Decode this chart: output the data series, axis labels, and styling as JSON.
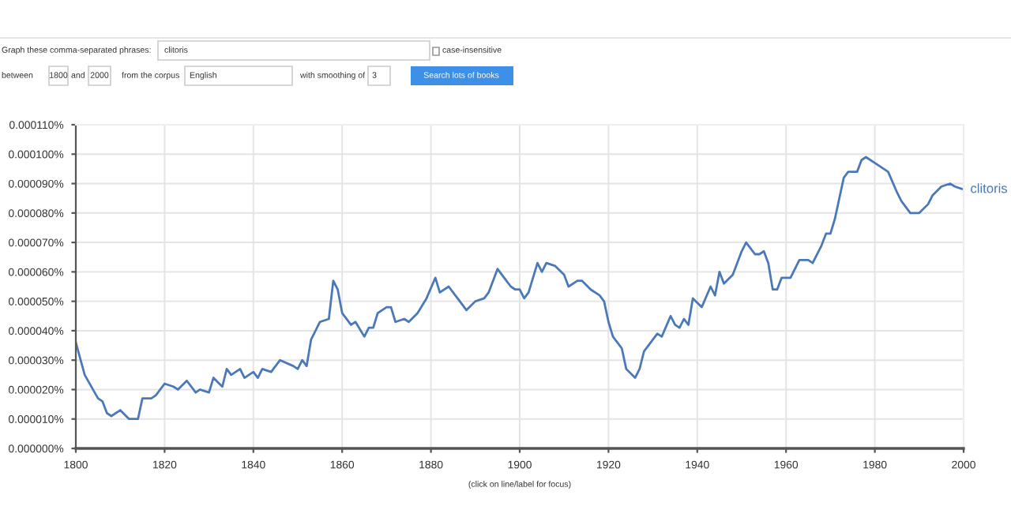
{
  "chart_data": {
    "type": "line",
    "x": [
      1800,
      1802,
      1805,
      1806,
      1807,
      1808,
      1810,
      1812,
      1814,
      1815,
      1817,
      1818,
      1820,
      1822,
      1823,
      1825,
      1827,
      1828,
      1830,
      1831,
      1833,
      1834,
      1835,
      1837,
      1838,
      1840,
      1841,
      1842,
      1844,
      1846,
      1849,
      1850,
      1851,
      1852,
      1853,
      1855,
      1857,
      1858,
      1859,
      1860,
      1862,
      1863,
      1865,
      1866,
      1867,
      1868,
      1870,
      1871,
      1872,
      1874,
      1875,
      1877,
      1879,
      1881,
      1882,
      1884,
      1886,
      1888,
      1890,
      1892,
      1893,
      1895,
      1897,
      1898,
      1899,
      1900,
      1901,
      1902,
      1904,
      1905,
      1906,
      1908,
      1910,
      1911,
      1913,
      1914,
      1916,
      1918,
      1919,
      1920,
      1921,
      1923,
      1924,
      1926,
      1927,
      1928,
      1929,
      1931,
      1932,
      1934,
      1935,
      1936,
      1937,
      1938,
      1939,
      1941,
      1943,
      1944,
      1945,
      1946,
      1948,
      1950,
      1951,
      1953,
      1954,
      1955,
      1956,
      1957,
      1958,
      1959,
      1961,
      1963,
      1965,
      1966,
      1968,
      1969,
      1970,
      1971,
      1973,
      1974,
      1976,
      1977,
      1978,
      1980,
      1982,
      1983,
      1985,
      1986,
      1988,
      1990,
      1992,
      1993,
      1995,
      1997,
      1998,
      2000
    ],
    "series": [
      {
        "name": "clitoris",
        "color": "#4a78b8",
        "values": [
          3.6e-05,
          2.5e-05,
          1.7e-05,
          1.6e-05,
          1.2e-05,
          1.1e-05,
          1.3e-05,
          1e-05,
          1e-05,
          1.7e-05,
          1.7e-05,
          1.8e-05,
          2.2e-05,
          2.1e-05,
          2e-05,
          2.3e-05,
          1.9e-05,
          2e-05,
          1.9e-05,
          2.4e-05,
          2.1e-05,
          2.7e-05,
          2.5e-05,
          2.7e-05,
          2.4e-05,
          2.6e-05,
          2.4e-05,
          2.7e-05,
          2.6e-05,
          3e-05,
          2.8e-05,
          2.7e-05,
          3e-05,
          2.8e-05,
          3.7e-05,
          4.3e-05,
          4.4e-05,
          5.7e-05,
          5.4e-05,
          4.6e-05,
          4.2e-05,
          4.3e-05,
          3.8e-05,
          4.1e-05,
          4.1e-05,
          4.6e-05,
          4.8e-05,
          4.8e-05,
          4.3e-05,
          4.4e-05,
          4.3e-05,
          4.6e-05,
          5.1e-05,
          5.8e-05,
          5.3e-05,
          5.5e-05,
          5.1e-05,
          4.7e-05,
          5e-05,
          5.1e-05,
          5.3e-05,
          6.1e-05,
          5.7e-05,
          5.5e-05,
          5.4e-05,
          5.4e-05,
          5.1e-05,
          5.3e-05,
          6.3e-05,
          6e-05,
          6.3e-05,
          6.2e-05,
          5.9e-05,
          5.5e-05,
          5.7e-05,
          5.7e-05,
          5.4e-05,
          5.2e-05,
          5e-05,
          4.3e-05,
          3.8e-05,
          3.4e-05,
          2.7e-05,
          2.4e-05,
          2.7e-05,
          3.3e-05,
          3.5e-05,
          3.9e-05,
          3.8e-05,
          4.5e-05,
          4.2e-05,
          4.1e-05,
          4.4e-05,
          4.2e-05,
          5.1e-05,
          4.8e-05,
          5.5e-05,
          5.2e-05,
          6e-05,
          5.6e-05,
          5.9e-05,
          6.7e-05,
          7e-05,
          6.6e-05,
          6.6e-05,
          6.7e-05,
          6.3e-05,
          5.4e-05,
          5.4e-05,
          5.8e-05,
          5.8e-05,
          6.4e-05,
          6.4e-05,
          6.3e-05,
          6.9e-05,
          7.3e-05,
          7.3e-05,
          7.8e-05,
          9.2e-05,
          9.4e-05,
          9.4e-05,
          9.8e-05,
          9.9e-05,
          9.7e-05,
          9.5e-05,
          9.4e-05,
          8.7e-05,
          8.4e-05,
          8e-05,
          8e-05,
          8.3e-05,
          8.6e-05,
          8.9e-05,
          9e-05,
          8.9e-05,
          8.8e-05
        ]
      }
    ],
    "xlim": [
      1800,
      2000
    ],
    "xticks": [
      1800,
      1820,
      1840,
      1860,
      1880,
      1900,
      1920,
      1940,
      1960,
      1980,
      2000
    ],
    "ylim": [
      0,
      0.00011
    ],
    "yticks": [
      {
        "value": 0,
        "label": "0.000000%"
      },
      {
        "value": 1e-05,
        "label": "0.000010%"
      },
      {
        "value": 2e-05,
        "label": "0.000020%"
      },
      {
        "value": 3e-05,
        "label": "0.000030%"
      },
      {
        "value": 4e-05,
        "label": "0.000040%"
      },
      {
        "value": 5e-05,
        "label": "0.000050%"
      },
      {
        "value": 6e-05,
        "label": "0.000060%"
      },
      {
        "value": 7e-05,
        "label": "0.000070%"
      },
      {
        "value": 8e-05,
        "label": "0.000080%"
      },
      {
        "value": 9e-05,
        "label": "0.000090%"
      },
      {
        "value": 0.0001,
        "label": "0.000100%"
      },
      {
        "value": 0.00011,
        "label": "0.000110%"
      }
    ],
    "grid": true,
    "marker": "none",
    "line_style": "solid",
    "annotations": [
      "Graph these comma-separated phrases:",
      "clitoris",
      "case-insensitive",
      "between",
      "1800",
      "and",
      "2000",
      "from the corpus",
      "English",
      "with smoothing of",
      "3",
      "Search lots of books",
      "(click on line/label for focus)"
    ]
  }
}
